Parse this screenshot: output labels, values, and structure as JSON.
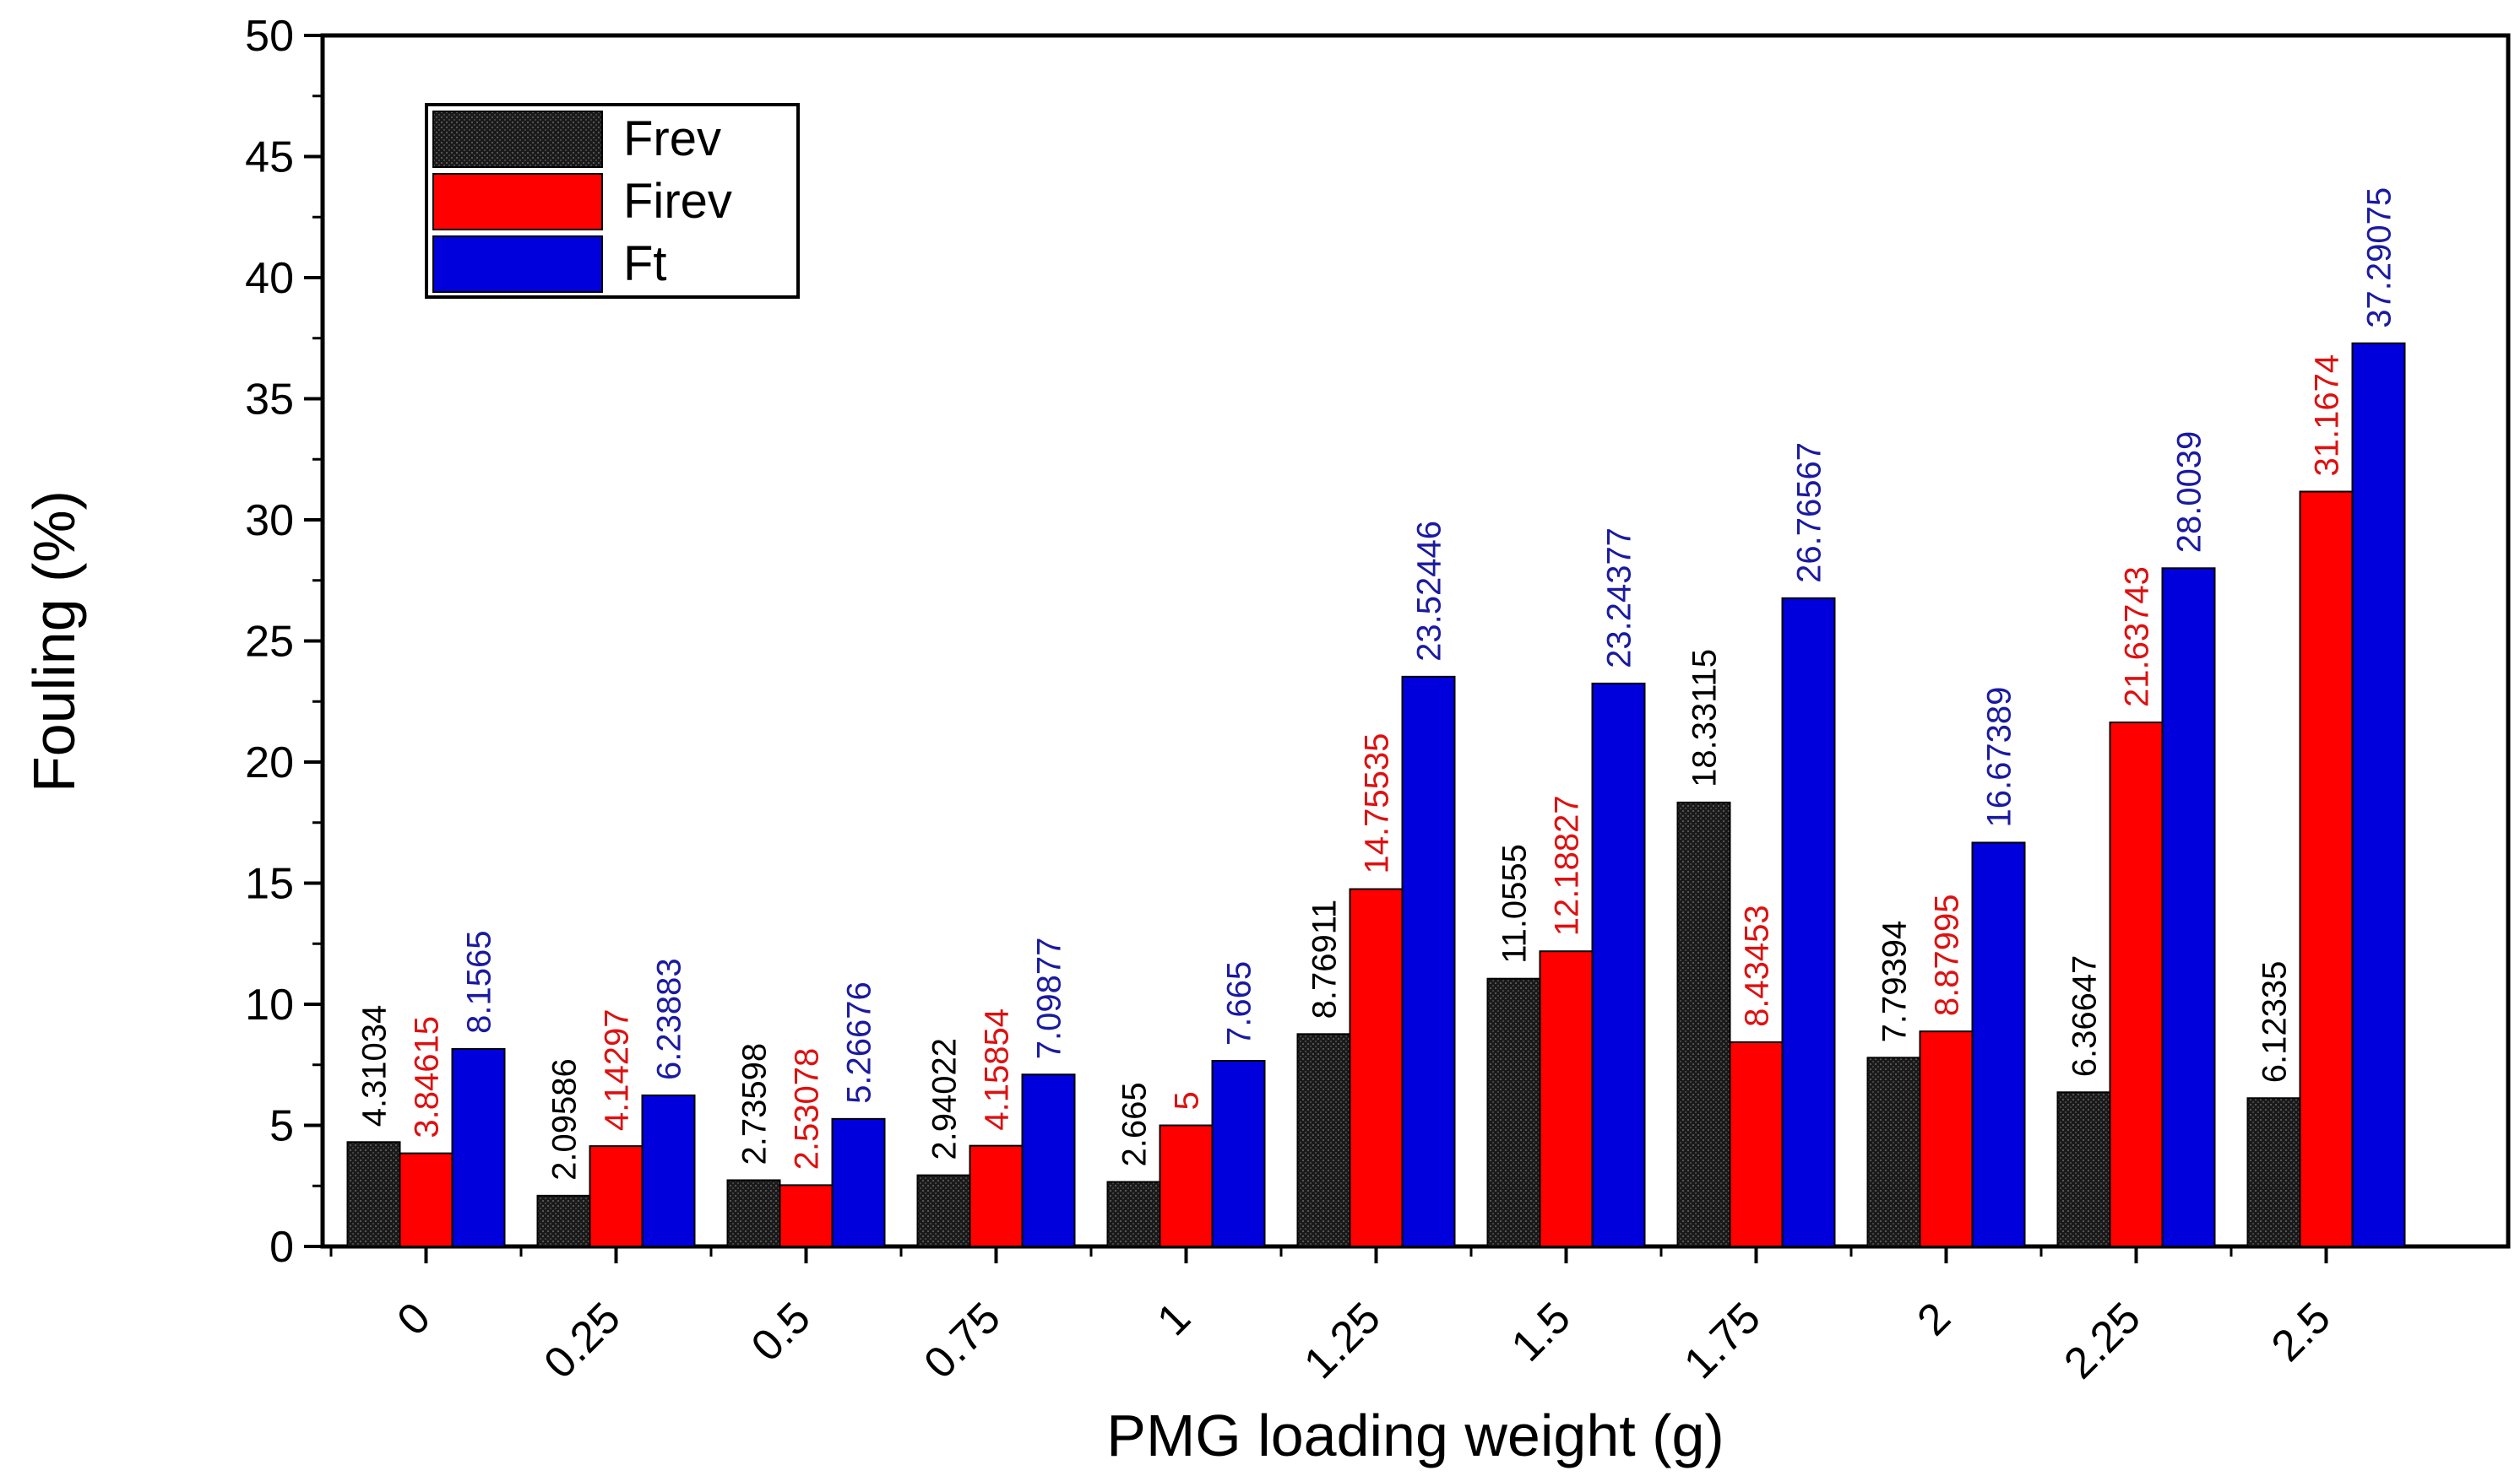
{
  "chart_data": {
    "type": "bar",
    "title": "",
    "xlabel": "PMG loading weight (g)",
    "ylabel": "Fouling (%)",
    "ylim": [
      0,
      50
    ],
    "yticks": [
      0,
      5,
      10,
      15,
      20,
      25,
      30,
      35,
      40,
      45,
      50
    ],
    "categories": [
      "0",
      "0.25",
      "0.5",
      "0.75",
      "1",
      "1.25",
      "1.5",
      "1.75",
      "2",
      "2.25",
      "2.5"
    ],
    "legend_position": "top-left",
    "series": [
      {
        "name": "Frev",
        "color": "#111111",
        "values": [
          4.31034,
          2.09586,
          2.73598,
          2.94022,
          2.665,
          8.76911,
          11.0555,
          18.33115,
          7.79394,
          6.36647,
          6.12335
        ],
        "labels": [
          "4.31034",
          "2.09586",
          "2.73598",
          "2.94022",
          "2.665",
          "8.76911",
          "11.0555",
          "18.33115",
          "7.79394",
          "6.36647",
          "6.12335"
        ]
      },
      {
        "name": "Firev",
        "color": "#ff0000",
        "values": [
          3.84615,
          4.14297,
          2.53078,
          4.15854,
          5,
          14.75535,
          12.18827,
          8.43453,
          8.87995,
          21.63743,
          31.1674
        ],
        "labels": [
          "3.84615",
          "4.14297",
          "2.53078",
          "4.15854",
          "5",
          "14.75535",
          "12.18827",
          "8.43453",
          "8.87995",
          "21.63743",
          "31.1674"
        ]
      },
      {
        "name": "Ft",
        "color": "#0000dd",
        "values": [
          8.1565,
          6.23883,
          5.26676,
          7.09877,
          7.665,
          23.52446,
          23.24377,
          26.76567,
          16.67389,
          28.0039,
          37.29075
        ],
        "labels": [
          "8.1565",
          "6.23883",
          "5.26676",
          "7.09877",
          "7.665",
          "23.52446",
          "23.24377",
          "26.76567",
          "16.67389",
          "28.0039",
          "37.29075"
        ]
      }
    ],
    "label_colors": [
      "#000000",
      "#dd1111",
      "#1a1aa0"
    ]
  }
}
